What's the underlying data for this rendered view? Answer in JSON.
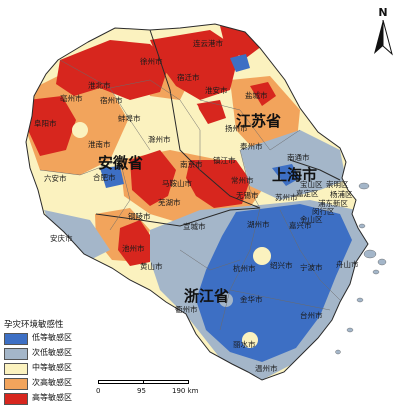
{
  "map": {
    "north_label": "N",
    "provinces": [
      {
        "name": "江苏省"
      },
      {
        "name": "安徽省"
      },
      {
        "name": "上海市"
      },
      {
        "name": "浙江省"
      }
    ],
    "cities": [
      "连云港市",
      "徐州市",
      "宿迁市",
      "盐城市",
      "淮北市",
      "亳州市",
      "淮安市",
      "宿州市",
      "阜阳市",
      "蚌埠市",
      "扬州市",
      "泰州市",
      "淮南市",
      "滁州市",
      "六安市",
      "合肥市",
      "南京市",
      "镇江市",
      "常州市",
      "南通市",
      "无锡市",
      "马鞍山市",
      "芜湖市",
      "苏州市",
      "铜陵市",
      "宣城市",
      "湖州市",
      "嘉兴市",
      "安庆市",
      "池州市",
      "黄山市",
      "杭州市",
      "绍兴市",
      "宁波市",
      "舟山市",
      "衢州市",
      "金华市",
      "台州市",
      "丽水市",
      "温州市",
      "宝山区",
      "崇明区",
      "浦东新区",
      "杨浦区",
      "嘉定区",
      "闵行区",
      "金山区"
    ],
    "colors": {
      "low": "#3d6fc4",
      "sub_low": "#a4b6c9",
      "medium": "#fbf2bf",
      "sub_high": "#f2a45c",
      "high": "#d7261e",
      "boundary": "#3a3a3a",
      "sea": "#ffffff"
    }
  },
  "legend": {
    "title": "孕灾环境敏感性",
    "items": [
      {
        "label": "低等敏感区",
        "color": "#3d6fc4"
      },
      {
        "label": "次低敏感区",
        "color": "#a4b6c9"
      },
      {
        "label": "中等敏感区",
        "color": "#fbf2bf"
      },
      {
        "label": "次高敏感区",
        "color": "#f2a45c"
      },
      {
        "label": "高等敏感区",
        "color": "#d7261e"
      }
    ]
  },
  "scale_bar": {
    "labels": [
      "0",
      "95",
      "190 km"
    ]
  }
}
